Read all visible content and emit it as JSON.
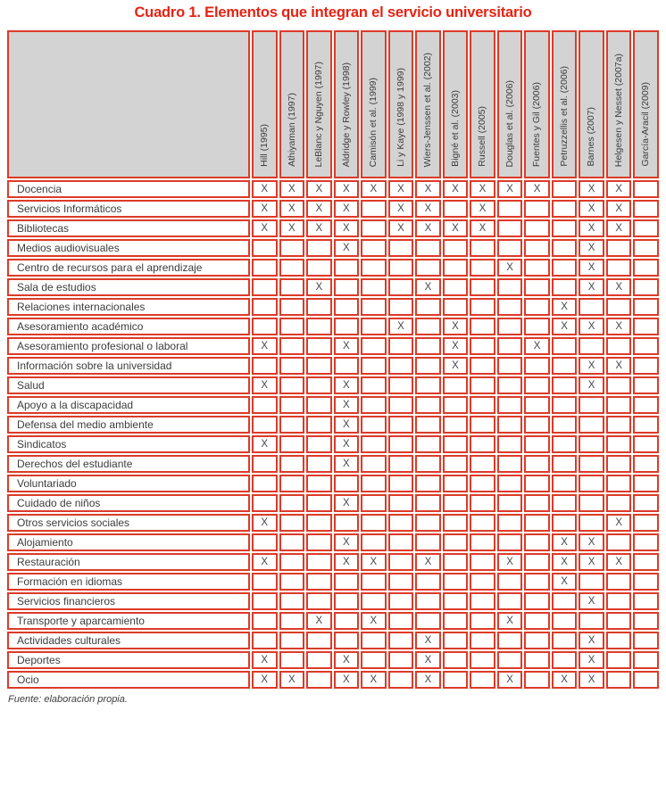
{
  "title": "Cuadro 1. Elementos que integran el servicio universitario",
  "source_note": "Fuente: elaboración propia.",
  "colors": {
    "border_red": "#dc3b28",
    "title_red": "#e42313",
    "header_bg": "#d3d3d3",
    "mark_color": "#45454e",
    "text_dark": "#3d3d3d"
  },
  "table": {
    "mark_glyph": "X",
    "columns": [
      "Hill (1995)",
      "Athiyaman (1997)",
      "LeBlanc y Nguyen (1997)",
      "Aldridge y Rowley (1998)",
      "Camisón et al. (1999)",
      "Li y Kaye (1998 y 1999)",
      "Wiers-Jenssen et al. (2002)",
      "Bigné et al. (2003)",
      "Russell (2005)",
      "Douglas et al. (2006)",
      "Fuentes y Gil (2006)",
      "Petruzzellis et al. (2006)",
      "Barnes (2007)",
      "Helgesen y Nesset (2007a)",
      "García-Aracil (2009)"
    ],
    "rows": [
      {
        "label": "Docencia",
        "marks": [
          1,
          1,
          1,
          1,
          1,
          1,
          1,
          1,
          1,
          1,
          1,
          0,
          1,
          1,
          0
        ]
      },
      {
        "label": "Servicios Informáticos",
        "marks": [
          1,
          1,
          1,
          1,
          0,
          1,
          1,
          0,
          1,
          0,
          0,
          0,
          1,
          1,
          0
        ]
      },
      {
        "label": "Bibliotecas",
        "marks": [
          1,
          1,
          1,
          1,
          0,
          1,
          1,
          1,
          1,
          0,
          0,
          0,
          1,
          1,
          0
        ]
      },
      {
        "label": "Medios audiovisuales",
        "marks": [
          0,
          0,
          0,
          1,
          0,
          0,
          0,
          0,
          0,
          0,
          0,
          0,
          1,
          0,
          0
        ]
      },
      {
        "label": "Centro de recursos para el aprendizaje",
        "marks": [
          0,
          0,
          0,
          0,
          0,
          0,
          0,
          0,
          0,
          1,
          0,
          0,
          1,
          0,
          0
        ]
      },
      {
        "label": "Sala de estudios",
        "marks": [
          0,
          0,
          1,
          0,
          0,
          0,
          1,
          0,
          0,
          0,
          0,
          0,
          1,
          1,
          0
        ]
      },
      {
        "label": "Relaciones internacionales",
        "marks": [
          0,
          0,
          0,
          0,
          0,
          0,
          0,
          0,
          0,
          0,
          0,
          1,
          0,
          0,
          0
        ]
      },
      {
        "label": "Asesoramiento académico",
        "marks": [
          0,
          0,
          0,
          0,
          0,
          1,
          0,
          1,
          0,
          0,
          0,
          1,
          1,
          1,
          0
        ]
      },
      {
        "label": "Asesoramiento profesional o laboral",
        "marks": [
          1,
          0,
          0,
          1,
          0,
          0,
          0,
          1,
          0,
          0,
          1,
          0,
          0,
          0,
          0
        ]
      },
      {
        "label": "Información sobre la universidad",
        "marks": [
          0,
          0,
          0,
          0,
          0,
          0,
          0,
          1,
          0,
          0,
          0,
          0,
          1,
          1,
          0
        ]
      },
      {
        "label": "Salud",
        "marks": [
          1,
          0,
          0,
          1,
          0,
          0,
          0,
          0,
          0,
          0,
          0,
          0,
          1,
          0,
          0
        ]
      },
      {
        "label": "Apoyo a la discapacidad",
        "marks": [
          0,
          0,
          0,
          1,
          0,
          0,
          0,
          0,
          0,
          0,
          0,
          0,
          0,
          0,
          0
        ]
      },
      {
        "label": "Defensa del medio ambiente",
        "marks": [
          0,
          0,
          0,
          1,
          0,
          0,
          0,
          0,
          0,
          0,
          0,
          0,
          0,
          0,
          0
        ]
      },
      {
        "label": "Sindicatos",
        "marks": [
          1,
          0,
          0,
          1,
          0,
          0,
          0,
          0,
          0,
          0,
          0,
          0,
          0,
          0,
          0
        ]
      },
      {
        "label": "Derechos del estudiante",
        "marks": [
          0,
          0,
          0,
          1,
          0,
          0,
          0,
          0,
          0,
          0,
          0,
          0,
          0,
          0,
          0
        ]
      },
      {
        "label": "Voluntariado",
        "marks": [
          0,
          0,
          0,
          0,
          0,
          0,
          0,
          0,
          0,
          0,
          0,
          0,
          0,
          0,
          0
        ]
      },
      {
        "label": "Cuidado de niños",
        "marks": [
          0,
          0,
          0,
          1,
          0,
          0,
          0,
          0,
          0,
          0,
          0,
          0,
          0,
          0,
          0
        ]
      },
      {
        "label": "Otros servicios sociales",
        "marks": [
          1,
          0,
          0,
          0,
          0,
          0,
          0,
          0,
          0,
          0,
          0,
          0,
          0,
          1,
          0
        ]
      },
      {
        "label": "Alojamiento",
        "marks": [
          0,
          0,
          0,
          1,
          0,
          0,
          0,
          0,
          0,
          0,
          0,
          1,
          1,
          0,
          0
        ]
      },
      {
        "label": "Restauración",
        "marks": [
          1,
          0,
          0,
          1,
          1,
          0,
          1,
          0,
          0,
          1,
          0,
          1,
          1,
          1,
          0
        ]
      },
      {
        "label": "Formación en idiomas",
        "marks": [
          0,
          0,
          0,
          0,
          0,
          0,
          0,
          0,
          0,
          0,
          0,
          1,
          0,
          0,
          0
        ]
      },
      {
        "label": "Servicios financieros",
        "marks": [
          0,
          0,
          0,
          0,
          0,
          0,
          0,
          0,
          0,
          0,
          0,
          0,
          1,
          0,
          0
        ]
      },
      {
        "label": "Transporte y aparcamiento",
        "marks": [
          0,
          0,
          1,
          0,
          1,
          0,
          0,
          0,
          0,
          1,
          0,
          0,
          0,
          0,
          0
        ]
      },
      {
        "label": "Actividades culturales",
        "marks": [
          0,
          0,
          0,
          0,
          0,
          0,
          1,
          0,
          0,
          0,
          0,
          0,
          1,
          0,
          0
        ]
      },
      {
        "label": "Deportes",
        "marks": [
          1,
          0,
          0,
          1,
          0,
          0,
          1,
          0,
          0,
          0,
          0,
          0,
          1,
          0,
          0
        ]
      },
      {
        "label": "Ocio",
        "marks": [
          1,
          1,
          0,
          1,
          1,
          0,
          1,
          0,
          0,
          1,
          0,
          1,
          1,
          0,
          0
        ]
      }
    ]
  }
}
